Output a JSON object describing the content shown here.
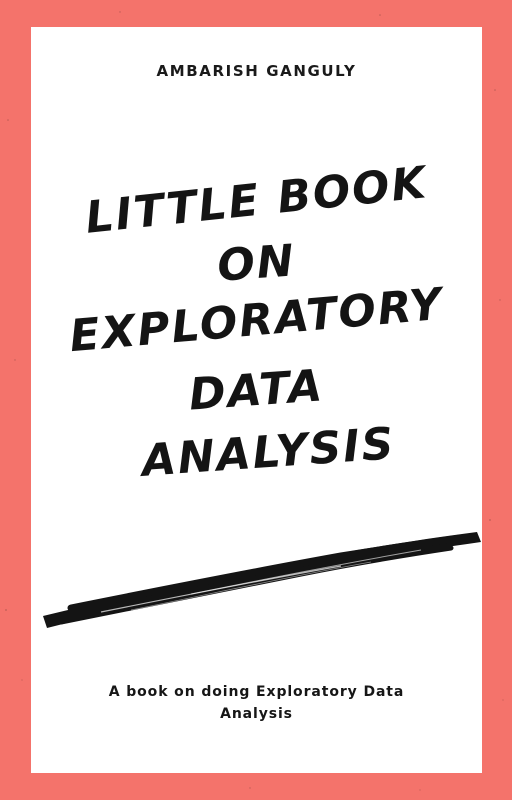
{
  "cover": {
    "author": "AMBARISH GANGULY",
    "title_lines": [
      "LITTLE BOOK",
      "ON",
      "EXPLORATORY",
      "DATA",
      "ANALYSIS"
    ],
    "tagline_line1": "A book on doing Exploratory Data",
    "tagline_line2": "Analysis"
  },
  "colors": {
    "frame": "#f4736b",
    "page": "#ffffff",
    "ink": "#141414"
  }
}
